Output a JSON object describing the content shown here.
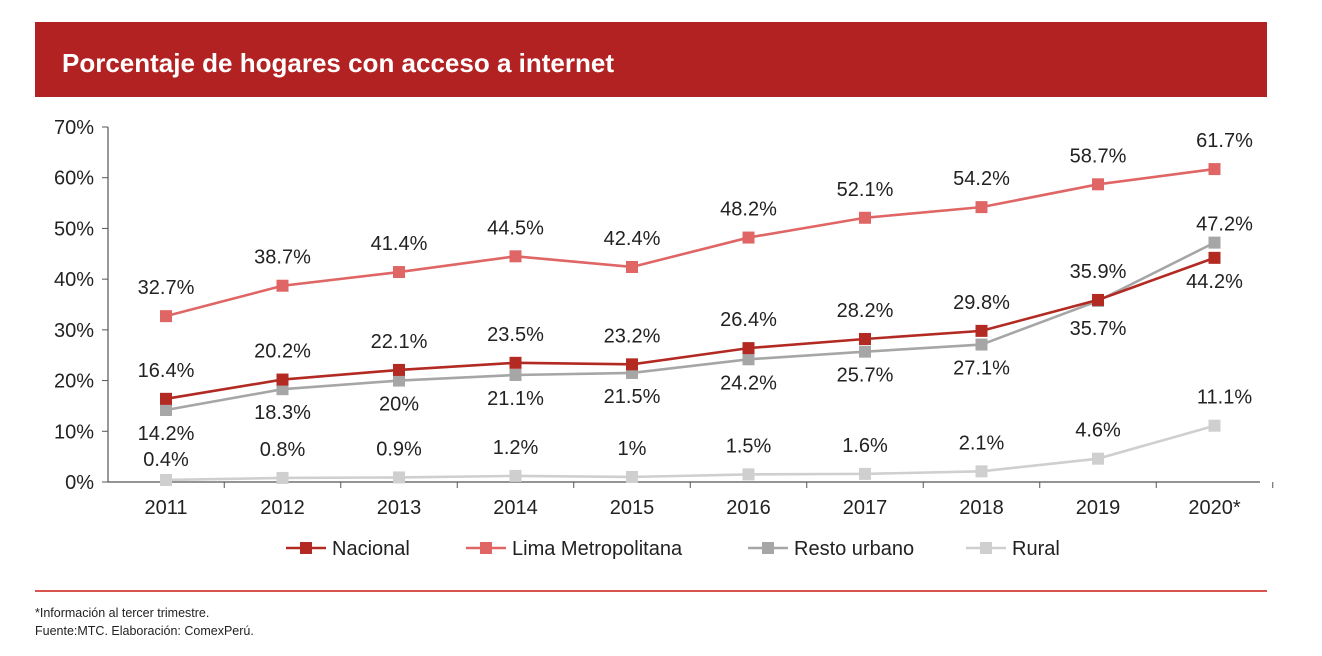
{
  "header": {
    "title": "Porcentaje de hogares con acceso a internet"
  },
  "footer": {
    "note": "*Información al tercer trimestre.",
    "source": "Fuente:MTC. Elaboración: ComexPerú."
  },
  "colors": {
    "header_bg": "#b22222",
    "nacional": "#b22a22",
    "lima": "#e06666",
    "resto": "#a6a6a6",
    "rural": "#cfcfcf"
  },
  "chart_data": {
    "type": "line",
    "title": "Porcentaje de hogares con acceso a internet",
    "xlabel": "",
    "ylabel": "",
    "ylim": [
      0,
      70
    ],
    "yticks": [
      0,
      10,
      20,
      30,
      40,
      50,
      60,
      70
    ],
    "ytick_labels": [
      "0%",
      "10%",
      "20%",
      "30%",
      "40%",
      "50%",
      "60%",
      "70%"
    ],
    "categories": [
      "2011",
      "2012",
      "2013",
      "2014",
      "2015",
      "2016",
      "2017",
      "2018",
      "2019",
      "2020*"
    ],
    "legend_position": "bottom",
    "series": [
      {
        "name": "Nacional",
        "color": "#b22a22",
        "values": [
          16.4,
          20.2,
          22.1,
          23.5,
          23.2,
          26.4,
          28.2,
          29.8,
          35.9,
          44.2
        ],
        "labels": [
          "16.4%",
          "20.2%",
          "22.1%",
          "23.5%",
          "23.2%",
          "26.4%",
          "28.2%",
          "29.8%",
          "35.9%",
          "44.2%"
        ]
      },
      {
        "name": "Lima Metropolitana",
        "color": "#e06666",
        "values": [
          32.7,
          38.7,
          41.4,
          44.5,
          42.4,
          48.2,
          52.1,
          54.2,
          58.7,
          61.7
        ],
        "labels": [
          "32.7%",
          "38.7%",
          "41.4%",
          "44.5%",
          "42.4%",
          "48.2%",
          "52.1%",
          "54.2%",
          "58.7%",
          "61.7%"
        ]
      },
      {
        "name": "Resto urbano",
        "color": "#a6a6a6",
        "values": [
          14.2,
          18.3,
          20,
          21.1,
          21.5,
          24.2,
          25.7,
          27.1,
          35.7,
          47.2
        ],
        "labels": [
          "14.2%",
          "18.3%",
          "20%",
          "21.1%",
          "21.5%",
          "24.2%",
          "25.7%",
          "27.1%",
          "35.7%",
          "47.2%"
        ]
      },
      {
        "name": "Rural",
        "color": "#cfcfcf",
        "values": [
          0.4,
          0.8,
          0.9,
          1.2,
          1,
          1.5,
          1.6,
          2.1,
          4.6,
          11.1
        ],
        "labels": [
          "0.4%",
          "0.8%",
          "0.9%",
          "1.2%",
          "1%",
          "1.5%",
          "1.6%",
          "2.1%",
          "4.6%",
          "11.1%"
        ]
      }
    ]
  }
}
